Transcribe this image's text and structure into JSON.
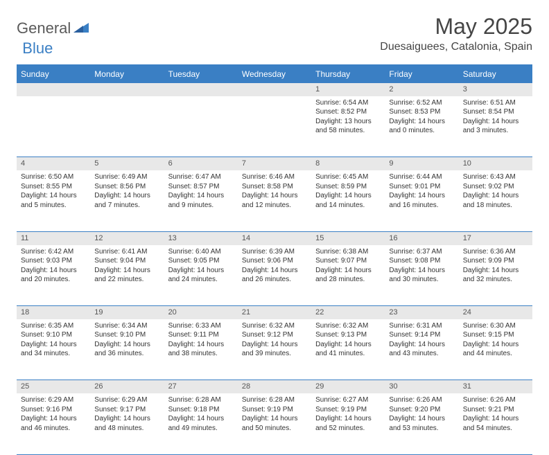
{
  "logo": {
    "part1": "General",
    "part2": "Blue"
  },
  "title": "May 2025",
  "location": "Duesaiguees, Catalonia, Spain",
  "colors": {
    "accent": "#3a7fc4",
    "header_text": "#ffffff",
    "daynum_bg": "#e8e8e8",
    "text": "#333333",
    "title_text": "#454545"
  },
  "daysOfWeek": [
    "Sunday",
    "Monday",
    "Tuesday",
    "Wednesday",
    "Thursday",
    "Friday",
    "Saturday"
  ],
  "weeks": [
    [
      {
        "n": "",
        "sr": "",
        "ss": "",
        "dl": ""
      },
      {
        "n": "",
        "sr": "",
        "ss": "",
        "dl": ""
      },
      {
        "n": "",
        "sr": "",
        "ss": "",
        "dl": ""
      },
      {
        "n": "",
        "sr": "",
        "ss": "",
        "dl": ""
      },
      {
        "n": "1",
        "sr": "Sunrise: 6:54 AM",
        "ss": "Sunset: 8:52 PM",
        "dl": "Daylight: 13 hours and 58 minutes."
      },
      {
        "n": "2",
        "sr": "Sunrise: 6:52 AM",
        "ss": "Sunset: 8:53 PM",
        "dl": "Daylight: 14 hours and 0 minutes."
      },
      {
        "n": "3",
        "sr": "Sunrise: 6:51 AM",
        "ss": "Sunset: 8:54 PM",
        "dl": "Daylight: 14 hours and 3 minutes."
      }
    ],
    [
      {
        "n": "4",
        "sr": "Sunrise: 6:50 AM",
        "ss": "Sunset: 8:55 PM",
        "dl": "Daylight: 14 hours and 5 minutes."
      },
      {
        "n": "5",
        "sr": "Sunrise: 6:49 AM",
        "ss": "Sunset: 8:56 PM",
        "dl": "Daylight: 14 hours and 7 minutes."
      },
      {
        "n": "6",
        "sr": "Sunrise: 6:47 AM",
        "ss": "Sunset: 8:57 PM",
        "dl": "Daylight: 14 hours and 9 minutes."
      },
      {
        "n": "7",
        "sr": "Sunrise: 6:46 AM",
        "ss": "Sunset: 8:58 PM",
        "dl": "Daylight: 14 hours and 12 minutes."
      },
      {
        "n": "8",
        "sr": "Sunrise: 6:45 AM",
        "ss": "Sunset: 8:59 PM",
        "dl": "Daylight: 14 hours and 14 minutes."
      },
      {
        "n": "9",
        "sr": "Sunrise: 6:44 AM",
        "ss": "Sunset: 9:01 PM",
        "dl": "Daylight: 14 hours and 16 minutes."
      },
      {
        "n": "10",
        "sr": "Sunrise: 6:43 AM",
        "ss": "Sunset: 9:02 PM",
        "dl": "Daylight: 14 hours and 18 minutes."
      }
    ],
    [
      {
        "n": "11",
        "sr": "Sunrise: 6:42 AM",
        "ss": "Sunset: 9:03 PM",
        "dl": "Daylight: 14 hours and 20 minutes."
      },
      {
        "n": "12",
        "sr": "Sunrise: 6:41 AM",
        "ss": "Sunset: 9:04 PM",
        "dl": "Daylight: 14 hours and 22 minutes."
      },
      {
        "n": "13",
        "sr": "Sunrise: 6:40 AM",
        "ss": "Sunset: 9:05 PM",
        "dl": "Daylight: 14 hours and 24 minutes."
      },
      {
        "n": "14",
        "sr": "Sunrise: 6:39 AM",
        "ss": "Sunset: 9:06 PM",
        "dl": "Daylight: 14 hours and 26 minutes."
      },
      {
        "n": "15",
        "sr": "Sunrise: 6:38 AM",
        "ss": "Sunset: 9:07 PM",
        "dl": "Daylight: 14 hours and 28 minutes."
      },
      {
        "n": "16",
        "sr": "Sunrise: 6:37 AM",
        "ss": "Sunset: 9:08 PM",
        "dl": "Daylight: 14 hours and 30 minutes."
      },
      {
        "n": "17",
        "sr": "Sunrise: 6:36 AM",
        "ss": "Sunset: 9:09 PM",
        "dl": "Daylight: 14 hours and 32 minutes."
      }
    ],
    [
      {
        "n": "18",
        "sr": "Sunrise: 6:35 AM",
        "ss": "Sunset: 9:10 PM",
        "dl": "Daylight: 14 hours and 34 minutes."
      },
      {
        "n": "19",
        "sr": "Sunrise: 6:34 AM",
        "ss": "Sunset: 9:10 PM",
        "dl": "Daylight: 14 hours and 36 minutes."
      },
      {
        "n": "20",
        "sr": "Sunrise: 6:33 AM",
        "ss": "Sunset: 9:11 PM",
        "dl": "Daylight: 14 hours and 38 minutes."
      },
      {
        "n": "21",
        "sr": "Sunrise: 6:32 AM",
        "ss": "Sunset: 9:12 PM",
        "dl": "Daylight: 14 hours and 39 minutes."
      },
      {
        "n": "22",
        "sr": "Sunrise: 6:32 AM",
        "ss": "Sunset: 9:13 PM",
        "dl": "Daylight: 14 hours and 41 minutes."
      },
      {
        "n": "23",
        "sr": "Sunrise: 6:31 AM",
        "ss": "Sunset: 9:14 PM",
        "dl": "Daylight: 14 hours and 43 minutes."
      },
      {
        "n": "24",
        "sr": "Sunrise: 6:30 AM",
        "ss": "Sunset: 9:15 PM",
        "dl": "Daylight: 14 hours and 44 minutes."
      }
    ],
    [
      {
        "n": "25",
        "sr": "Sunrise: 6:29 AM",
        "ss": "Sunset: 9:16 PM",
        "dl": "Daylight: 14 hours and 46 minutes."
      },
      {
        "n": "26",
        "sr": "Sunrise: 6:29 AM",
        "ss": "Sunset: 9:17 PM",
        "dl": "Daylight: 14 hours and 48 minutes."
      },
      {
        "n": "27",
        "sr": "Sunrise: 6:28 AM",
        "ss": "Sunset: 9:18 PM",
        "dl": "Daylight: 14 hours and 49 minutes."
      },
      {
        "n": "28",
        "sr": "Sunrise: 6:28 AM",
        "ss": "Sunset: 9:19 PM",
        "dl": "Daylight: 14 hours and 50 minutes."
      },
      {
        "n": "29",
        "sr": "Sunrise: 6:27 AM",
        "ss": "Sunset: 9:19 PM",
        "dl": "Daylight: 14 hours and 52 minutes."
      },
      {
        "n": "30",
        "sr": "Sunrise: 6:26 AM",
        "ss": "Sunset: 9:20 PM",
        "dl": "Daylight: 14 hours and 53 minutes."
      },
      {
        "n": "31",
        "sr": "Sunrise: 6:26 AM",
        "ss": "Sunset: 9:21 PM",
        "dl": "Daylight: 14 hours and 54 minutes."
      }
    ]
  ]
}
